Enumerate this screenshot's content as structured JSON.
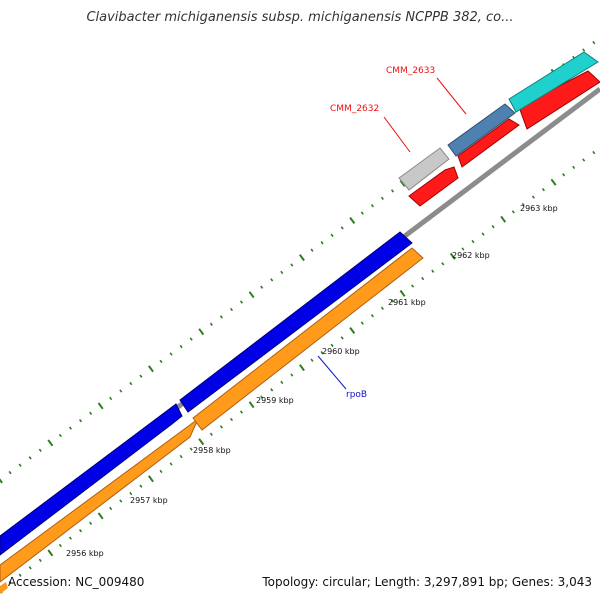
{
  "header": {
    "title": "Clavibacter michiganensis subsp. michiganensis NCPPB 382, co..."
  },
  "footer": {
    "accession": "Accession: NC_009480",
    "stats": "Topology: circular; Length: 3,297,891 bp; Genes: 3,043"
  },
  "colors": {
    "backbone": "#8c8c8c",
    "tick": "#2e7d22",
    "blue_gene": "#0000e6",
    "orange_gene": "#ff9a1a",
    "red_gene": "#ff1a1a",
    "cyan_gene": "#20d0cc",
    "steel_gene": "#4e80b0",
    "gray_gene": "#c8c8c8",
    "label_red": "#ee1111",
    "label_blue": "#1111cc"
  },
  "scale_labels": [
    "2956 kbp",
    "2957 kbp",
    "2958 kbp",
    "2959 kbp",
    "2960 kbp",
    "2961 kbp",
    "2962 kbp",
    "2963 kbp"
  ],
  "gene_labels": [
    {
      "id": "cmm2633",
      "text": "CMM_2633",
      "color": "red"
    },
    {
      "id": "cmm2632",
      "text": "CMM_2632",
      "color": "red"
    },
    {
      "id": "rpob",
      "text": "rpoB",
      "color": "blue"
    }
  ]
}
